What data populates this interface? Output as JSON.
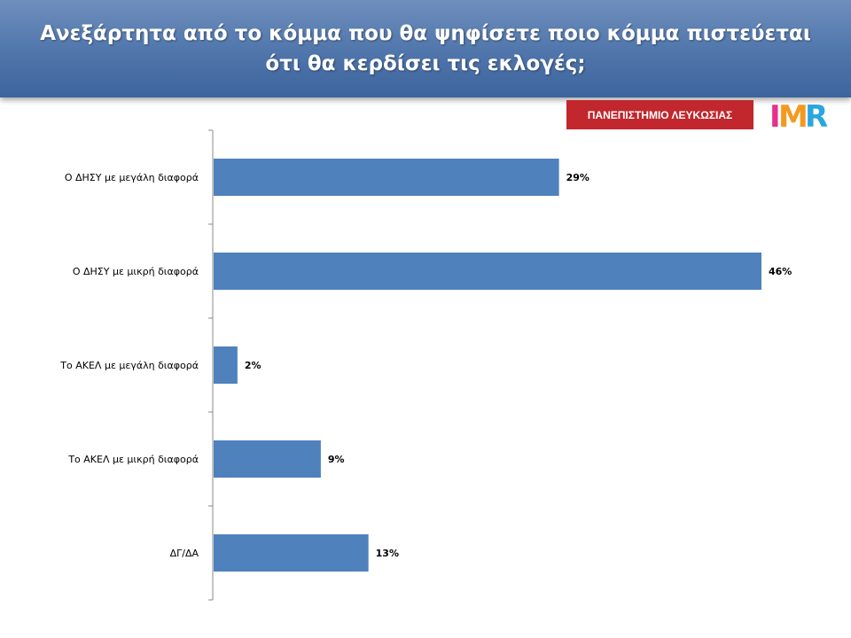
{
  "header": {
    "title_line1": "Ανεξάρτητα από το κόμμα που θα ψηφίσετε ποιο κόμμα πιστεύεται",
    "title_line2": "ότι θα κερδίσει τις εκλογές;"
  },
  "logos": {
    "university": "ΠΑΝΕΠΙΣΤΗΜΙΟ ΛΕΥΚΩΣΙΑΣ",
    "imr": "IMR"
  },
  "colors": {
    "bar": "#4f81bd",
    "header": "#4f75ab",
    "university_logo": "#c1272d"
  },
  "chart_data": {
    "type": "bar",
    "orientation": "horizontal",
    "categories": [
      "Ο ΔΗΣΥ με μεγάλη διαφορά",
      "Ο ΔΗΣΥ με μικρή διαφορά",
      "Το ΑΚΕΛ με μεγάλη διαφορά",
      "Το ΑΚΕΛ με μικρή διαφορά",
      "ΔΓ/ΔΑ"
    ],
    "values": [
      29,
      46,
      2,
      9,
      13
    ],
    "value_labels": [
      "29%",
      "46%",
      "2%",
      "9%",
      "13%"
    ],
    "unit": "%",
    "xlim": [
      0,
      46
    ],
    "grid": false,
    "legend": "none"
  }
}
